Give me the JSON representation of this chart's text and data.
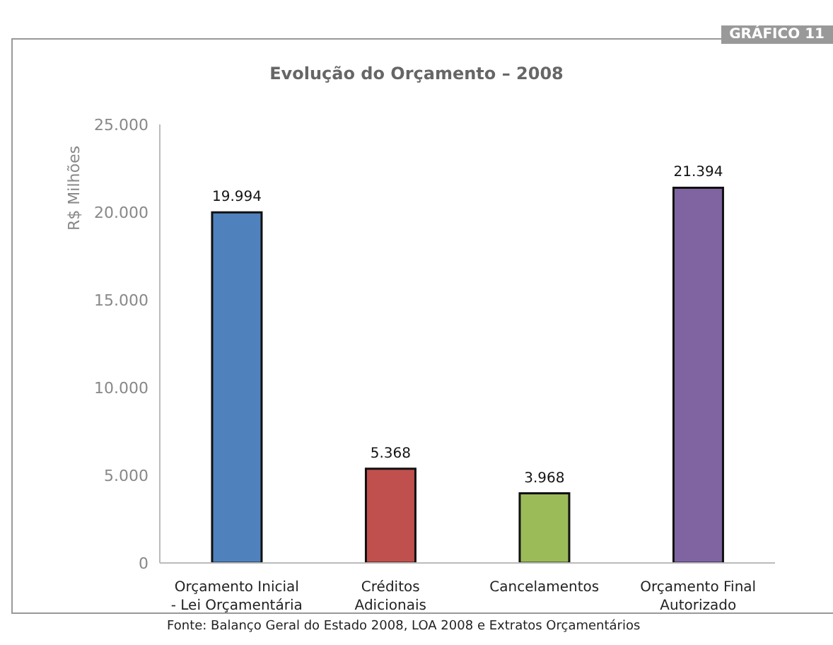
{
  "chart_data": {
    "type": "bar",
    "title": "Evolução do Orçamento – 2008",
    "ylabel": "R$ Milhões",
    "categories": [
      "Orçamento Inicial - Lei Orçamentária",
      "Créditos Adicionais",
      "Cancelamentos",
      "Orçamento Final Autorizado"
    ],
    "values": [
      19994,
      5368,
      3968,
      21394
    ],
    "value_labels": [
      "19.994",
      "5.368",
      "3.968",
      "21.394"
    ],
    "colors": [
      "#4f81bd",
      "#c0504d",
      "#9bbb59",
      "#8064a2"
    ],
    "ylim": [
      0,
      25000
    ],
    "yticks": [
      {
        "value": 0,
        "label": "0"
      },
      {
        "value": 5000,
        "label": "5.000"
      },
      {
        "value": 10000,
        "label": "10.000"
      },
      {
        "value": 15000,
        "label": "15.000"
      },
      {
        "value": 20000,
        "label": "20.000"
      },
      {
        "value": 25000,
        "label": "25.000"
      }
    ],
    "grid": false,
    "legend": false,
    "annotations": [
      "GRÁFICO 11",
      "Fonte: Balanço Geral do Estado 2008, LOA 2008 e Extratos Orçamentários"
    ]
  }
}
